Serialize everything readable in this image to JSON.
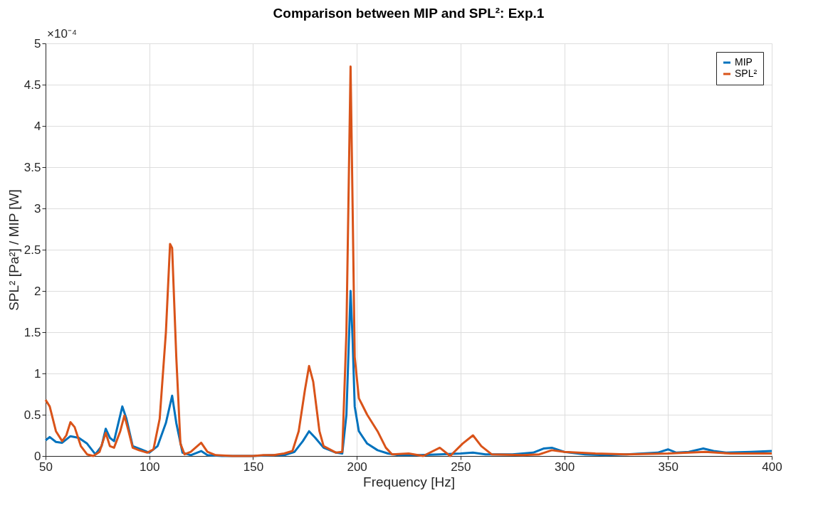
{
  "chart_data": {
    "type": "line",
    "title": "Comparison between MIP and SPL²: Exp.1",
    "xlabel": "Frequency [Hz]",
    "ylabel": "SPL² [Pa²] / MIP [W]",
    "annotations": [
      "×10⁻⁴"
    ],
    "xlim": [
      50,
      400
    ],
    "xticks": [
      50,
      100,
      150,
      200,
      250,
      300,
      350,
      400
    ],
    "ylim": [
      0,
      5
    ],
    "yticks": [
      0,
      0.5,
      1,
      1.5,
      2,
      2.5,
      3,
      3.5,
      4,
      4.5,
      5
    ],
    "grid": true,
    "legend": "top right",
    "line_style": "solid",
    "marker": "none",
    "series": [
      {
        "name": "MIP",
        "color": "#0072bd",
        "x": [
          50,
          52,
          55,
          58,
          62,
          66,
          70,
          74,
          77,
          79,
          81,
          83,
          87,
          89,
          92,
          96,
          100,
          104,
          108,
          111,
          113,
          116,
          120,
          125,
          128,
          135,
          150,
          160,
          165,
          170,
          174,
          177,
          180,
          184,
          190,
          193,
          195,
          197,
          198,
          199,
          201,
          205,
          210,
          215,
          220,
          230,
          240,
          250,
          256,
          262,
          275,
          285,
          290,
          294,
          300,
          310,
          320,
          330,
          345,
          350,
          354,
          360,
          367,
          372,
          378,
          390,
          400
        ],
        "values": [
          0.19,
          0.23,
          0.17,
          0.16,
          0.24,
          0.22,
          0.15,
          0.02,
          0.12,
          0.33,
          0.22,
          0.18,
          0.6,
          0.45,
          0.12,
          0.08,
          0.04,
          0.12,
          0.4,
          0.73,
          0.4,
          0.04,
          0.01,
          0.06,
          0.01,
          0,
          0,
          0.01,
          0.01,
          0.05,
          0.18,
          0.3,
          0.22,
          0.1,
          0.04,
          0.03,
          0.5,
          2.0,
          1.4,
          0.6,
          0.3,
          0.15,
          0.07,
          0.03,
          0.01,
          0.01,
          0.02,
          0.03,
          0.04,
          0.02,
          0.02,
          0.04,
          0.09,
          0.1,
          0.05,
          0.02,
          0.01,
          0.02,
          0.04,
          0.08,
          0.04,
          0.05,
          0.09,
          0.06,
          0.04,
          0.05,
          0.06
        ]
      },
      {
        "name": "SPL²",
        "color": "#d95319",
        "x": [
          50,
          52,
          55,
          58,
          60,
          62,
          64,
          67,
          70,
          73,
          76,
          79,
          81,
          83,
          86,
          88,
          90,
          92,
          95,
          99,
          102,
          105,
          108,
          110,
          111,
          113,
          115,
          117,
          120,
          125,
          128,
          132,
          140,
          150,
          155,
          160,
          165,
          169,
          172,
          175,
          177,
          179,
          182,
          184,
          190,
          193,
          195,
          197,
          198,
          199,
          201,
          205,
          210,
          214,
          217,
          225,
          232,
          240,
          245,
          251,
          256,
          260,
          265,
          280,
          288,
          294,
          300,
          315,
          330,
          350,
          368,
          380,
          400
        ],
        "values": [
          0.68,
          0.6,
          0.3,
          0.18,
          0.25,
          0.41,
          0.35,
          0.12,
          0.02,
          0,
          0.05,
          0.28,
          0.12,
          0.1,
          0.3,
          0.49,
          0.3,
          0.1,
          0.07,
          0.04,
          0.08,
          0.45,
          1.5,
          2.57,
          2.52,
          1.2,
          0.15,
          0.02,
          0.05,
          0.16,
          0.05,
          0.01,
          0,
          0,
          0.01,
          0.01,
          0.03,
          0.06,
          0.3,
          0.8,
          1.09,
          0.9,
          0.3,
          0.12,
          0.04,
          0.05,
          1.5,
          4.72,
          3.0,
          1.2,
          0.7,
          0.5,
          0.3,
          0.1,
          0.02,
          0.03,
          0,
          0.1,
          0,
          0.15,
          0.25,
          0.12,
          0.02,
          0.01,
          0.02,
          0.07,
          0.05,
          0.03,
          0.02,
          0.03,
          0.05,
          0.03,
          0.03
        ]
      }
    ]
  }
}
